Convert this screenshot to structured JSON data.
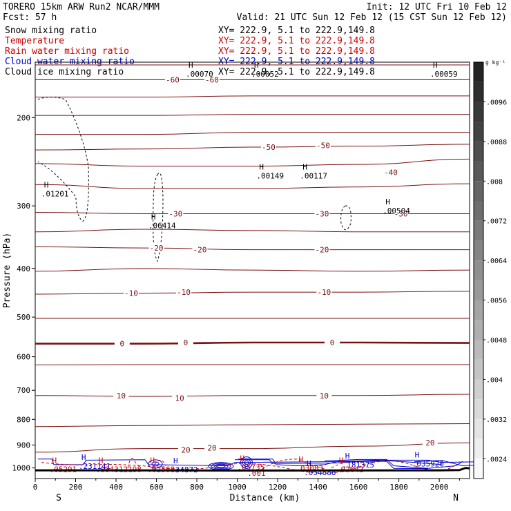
{
  "header": {
    "model": "TORERO  15km ARW   Run2    NCAR/MMM",
    "init": "Init: 12 UTC Fri 10 Feb 12",
    "fcst": "Fcst:   57 h",
    "valid": "Valid: 21 UTC Sun 12 Feb 12 (15 CST Sun 12 Feb 12)"
  },
  "fields": [
    {
      "name": "Snow mixing ratio",
      "xy": "XY= 222.9,  5.1 to 222.9,149.8",
      "color": "#000000"
    },
    {
      "name": "Temperature",
      "xy": "XY= 222.9,  5.1 to 222.9,149.8",
      "color": "#cc0000"
    },
    {
      "name": "Rain water mixing ratio",
      "xy": "XY= 222.9,  5.1 to 222.9,149.8",
      "color": "#cc0000"
    },
    {
      "name": "Cloud water mixing ratio",
      "xy": "XY= 222.9,  5.1 to 222.9,149.8",
      "color": "#0000cc"
    },
    {
      "name": "Cloud ice mixing ratio",
      "xy": "XY= 222.9,  5.1 to 222.9,149.8",
      "color": "#000000"
    }
  ],
  "colors": {
    "temperature": "#7a1010",
    "freezing": "#7a1010",
    "rain": "#cc0000",
    "cloud_water": "#0000cc",
    "snow": "#000000",
    "ground": "#000000"
  },
  "chart_data": {
    "type": "cross-section contour",
    "xlabel": "Distance (km)",
    "ylabel": "Pressure (hPa)",
    "xlim": [
      0,
      2150
    ],
    "ylim": [
      1050,
      155
    ],
    "y_scale": "log",
    "x_ticks": [
      0,
      200,
      400,
      600,
      800,
      1000,
      1200,
      1400,
      1600,
      1800,
      2000
    ],
    "y_ticks": [
      200,
      300,
      400,
      500,
      600,
      700,
      800,
      900,
      1000
    ],
    "x_end_labels": {
      "left": "S",
      "right": "N"
    },
    "temperature_label_values": [
      "-60",
      "-60",
      "-50",
      "-50",
      "-40",
      "-30",
      "-30",
      "-30",
      "-20",
      "-20",
      "-20",
      "-10",
      "-10",
      "-10",
      "0",
      "0",
      "0",
      "10",
      "10",
      "10",
      "20",
      "20",
      "20"
    ],
    "temperature_labels": [
      {
        "text": "-60",
        "x": 680,
        "p": 168
      },
      {
        "text": "-60",
        "x": 875,
        "p": 168
      },
      {
        "text": "-50",
        "x": 1155,
        "p": 229
      },
      {
        "text": "-50",
        "x": 1425,
        "p": 227
      },
      {
        "text": "-40",
        "x": 1760,
        "p": 257
      },
      {
        "text": "-30",
        "x": 695,
        "p": 311
      },
      {
        "text": "-30",
        "x": 1420,
        "p": 311
      },
      {
        "text": "-30",
        "x": 1810,
        "p": 311
      },
      {
        "text": "-20",
        "x": 600,
        "p": 364
      },
      {
        "text": "-20",
        "x": 815,
        "p": 367
      },
      {
        "text": "-20",
        "x": 1420,
        "p": 367
      },
      {
        "text": "-10",
        "x": 475,
        "p": 448
      },
      {
        "text": "-10",
        "x": 735,
        "p": 446
      },
      {
        "text": "-10",
        "x": 1430,
        "p": 446
      },
      {
        "text": "0",
        "x": 430,
        "p": 565
      },
      {
        "text": "0",
        "x": 745,
        "p": 562
      },
      {
        "text": "0",
        "x": 1470,
        "p": 562
      },
      {
        "text": "10",
        "x": 425,
        "p": 717
      },
      {
        "text": "10",
        "x": 715,
        "p": 725
      },
      {
        "text": "10",
        "x": 1430,
        "p": 717
      },
      {
        "text": "20",
        "x": 745,
        "p": 920
      },
      {
        "text": "20",
        "x": 875,
        "p": 912
      },
      {
        "text": "20",
        "x": 1955,
        "p": 891
      }
    ],
    "temperature_isotherms": [
      {
        "t": -60,
        "p": [
          157,
          157,
          157,
          157,
          157
        ]
      },
      {
        "t": -60,
        "p": [
          168,
          168,
          168,
          168,
          168
        ]
      },
      {
        "t": -55,
        "p": [
          182,
          182,
          181,
          181,
          181
        ]
      },
      {
        "t": -50,
        "p": [
          198,
          198,
          197,
          197,
          197
        ]
      },
      {
        "t": -50,
        "p": [
          216,
          216,
          214,
          214,
          214
        ]
      },
      {
        "t": -45,
        "p": [
          232,
          231,
          229,
          228,
          226
        ]
      },
      {
        "t": -40,
        "p": [
          247,
          250,
          250,
          248,
          242
        ]
      },
      {
        "t": -35,
        "p": [
          272,
          277,
          277,
          275,
          271
        ]
      },
      {
        "t": -30,
        "p": [
          309,
          311,
          311,
          311,
          311
        ]
      },
      {
        "t": -25,
        "p": [
          338,
          334,
          336,
          338,
          338
        ]
      },
      {
        "t": -20,
        "p": [
          362,
          364,
          367,
          367,
          367
        ]
      },
      {
        "t": -15,
        "p": [
          405,
          400,
          403,
          405,
          403
        ]
      },
      {
        "t": -10,
        "p": [
          450,
          448,
          446,
          446,
          444
        ]
      },
      {
        "t": -5,
        "p": [
          503,
          503,
          503,
          503,
          503
        ]
      },
      {
        "t": 0,
        "p": [
          565,
          565,
          562,
          562,
          563
        ]
      },
      {
        "t": 5,
        "p": [
          623,
          622,
          622,
          622,
          622
        ]
      },
      {
        "t": 10,
        "p": [
          717,
          720,
          717,
          717,
          713
        ]
      },
      {
        "t": 15,
        "p": [
          827,
          823,
          820,
          818,
          816
        ]
      },
      {
        "t": 20,
        "p": [
          930,
          915,
          915,
          905,
          891
        ]
      }
    ],
    "snow_maxima": [
      {
        "label": "H",
        "value": ".00070",
        "x": 745,
        "p": 161
      },
      {
        "label": "H",
        "value": ".00052",
        "x": 1070,
        "p": 161
      },
      {
        "label": "H",
        "value": ".00059",
        "x": 1955,
        "p": 161
      },
      {
        "label": "H",
        "value": ".01201",
        "x": 30,
        "p": 279
      },
      {
        "label": "H",
        "value": ".00149",
        "x": 1095,
        "p": 257
      },
      {
        "label": "H",
        "value": ".00117",
        "x": 1310,
        "p": 257
      },
      {
        "label": "H",
        "value": ".06414",
        "x": 560,
        "p": 323
      },
      {
        "label": "H",
        "value": ".00504",
        "x": 1720,
        "p": 302
      }
    ],
    "cloud_water_maxima": [
      {
        "label": "H",
        "value": ".231141",
        "x": 215,
        "p": 976
      },
      {
        "label": "H",
        "value": ".34872",
        "x": 670,
        "p": 992
      },
      {
        "label": "H",
        "value": ".181375",
        "x": 1520,
        "p": 970
      },
      {
        "label": "H",
        "value": ".035920",
        "x": 1865,
        "p": 966
      },
      {
        "label": "H",
        "value": ".054888",
        "x": 1330,
        "p": 1004
      }
    ],
    "rain_maxima": [
      {
        "label": "H",
        "value": ".05291",
        "x": 70,
        "p": 990
      },
      {
        "label": "H",
        "value": ".004312198",
        "x": 300,
        "p": 990
      },
      {
        "label": "H",
        "value": ".02568",
        "x": 555,
        "p": 990
      },
      {
        "label": "H",
        "value": ".05735",
        "x": 1000,
        "p": 980
      },
      {
        "label": "H",
        "value": ".03083",
        "x": 1290,
        "p": 985
      },
      {
        "label": "H",
        "value": ".02642",
        "x": 1490,
        "p": 990
      },
      {
        "label": "",
        "value": ".001",
        "x": 1050,
        "p": 1008
      }
    ],
    "colorbar": {
      "unit": "g kg⁻¹",
      "tick_labels": [
        ".0024",
        ".0032",
        ".004",
        ".0048",
        ".0056",
        ".0064",
        ".0072",
        ".008",
        ".0088",
        ".0096"
      ],
      "tick_values": [
        0.0024,
        0.0032,
        0.004,
        0.0048,
        0.0056,
        0.0064,
        0.0072,
        0.008,
        0.0088,
        0.0096
      ],
      "range": [
        0.002,
        0.0104
      ]
    }
  }
}
